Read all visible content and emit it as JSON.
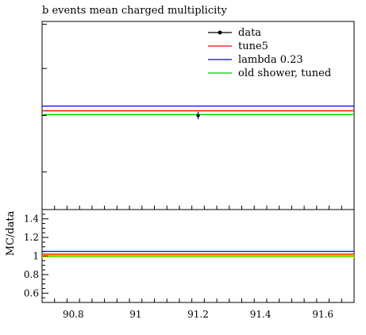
{
  "chart_data": [
    {
      "type": "line",
      "title": "b events mean charged multiplicity",
      "xlim": [
        90.7,
        91.7
      ],
      "ylim": [
        0,
        1
      ],
      "y_ticks_labeled": false,
      "x_ticks_labeled": false,
      "legend_position": "top-right",
      "data_points": [
        {
          "name": "data",
          "x": 91.2,
          "y": 0.5,
          "yerr": 0.02,
          "color": "#000000"
        }
      ],
      "series": [
        {
          "name": "tune5",
          "color": "#ff0000",
          "x": [
            90.7,
            91.7
          ],
          "y": [
            0.525,
            0.525
          ]
        },
        {
          "name": "lambda 0.23",
          "color": "#0000ff",
          "x": [
            90.7,
            91.7
          ],
          "y": [
            0.55,
            0.55
          ]
        },
        {
          "name": "old shower, tuned",
          "color": "#00cc00",
          "x": [
            90.7,
            91.7
          ],
          "y": [
            0.505,
            0.505
          ]
        }
      ],
      "legend": [
        {
          "name": "data",
          "color": "#000000",
          "marker": true
        },
        {
          "name": "tune5",
          "color": "#ff0000",
          "marker": false
        },
        {
          "name": "lambda 0.23",
          "color": "#0000ff",
          "marker": false
        },
        {
          "name": "old shower, tuned",
          "color": "#00cc00",
          "marker": false
        }
      ]
    },
    {
      "type": "line",
      "ylabel": "MC/data",
      "xlim": [
        90.7,
        91.7
      ],
      "ylim": [
        0.5,
        1.5
      ],
      "x_ticks": [
        90.8,
        91.0,
        91.2,
        91.4,
        91.6
      ],
      "x_tick_labels": [
        "90.8",
        "91",
        "91.2",
        "91.4",
        "91.6"
      ],
      "y_ticks": [
        0.6,
        0.8,
        1.0,
        1.2,
        1.4
      ],
      "y_tick_labels": [
        "0.6",
        "0.8",
        "1",
        "1.2",
        "1.4"
      ],
      "band": {
        "low": 0.98,
        "high": 1.02,
        "color": "#ffff00"
      },
      "series": [
        {
          "name": "tune5",
          "color": "#ff0000",
          "x": [
            90.7,
            91.7
          ],
          "y": [
            1.02,
            1.02
          ]
        },
        {
          "name": "lambda 0.23",
          "color": "#0000ff",
          "x": [
            90.7,
            91.7
          ],
          "y": [
            1.05,
            1.05
          ]
        },
        {
          "name": "old shower, tuned",
          "color": "#00cc00",
          "x": [
            90.7,
            91.7
          ],
          "y": [
            1.0,
            1.0
          ]
        }
      ]
    }
  ]
}
